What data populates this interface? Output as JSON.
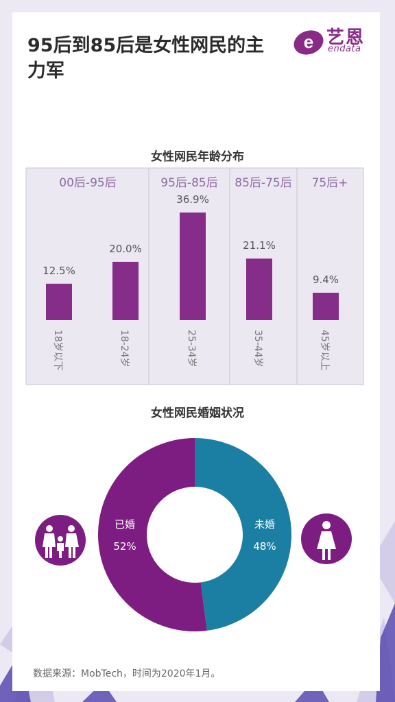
{
  "title": "95后到85后是女性网民的主力军",
  "logo": {
    "cn": "艺恩",
    "en": "endata"
  },
  "chart_data": [
    {
      "type": "bar",
      "title": "女性网民年龄分布",
      "groups": [
        "00后-95后",
        "95后-85后",
        "85后-75后",
        "75后+"
      ],
      "categories": [
        "18岁以下",
        "18-24岁",
        "25-34岁",
        "35-44岁",
        "45岁以上"
      ],
      "values": [
        12.5,
        20.0,
        36.9,
        21.1,
        9.4
      ],
      "value_labels": [
        "12.5%",
        "20.0%",
        "36.9%",
        "21.1%",
        "9.4%"
      ],
      "ylim": [
        0,
        40
      ],
      "color": "#862c89"
    },
    {
      "type": "pie",
      "title": "女性网民婚姻状况",
      "labels": [
        "已婚",
        "未婚"
      ],
      "values": [
        52,
        48
      ],
      "value_labels": [
        "52%",
        "48%"
      ],
      "colors": [
        "#7d1d82",
        "#1b7fa3"
      ]
    }
  ],
  "icons": {
    "married": "family-icon",
    "unmarried": "woman-icon"
  },
  "source": "数据来源：MobTech，时间为2020年1月。"
}
